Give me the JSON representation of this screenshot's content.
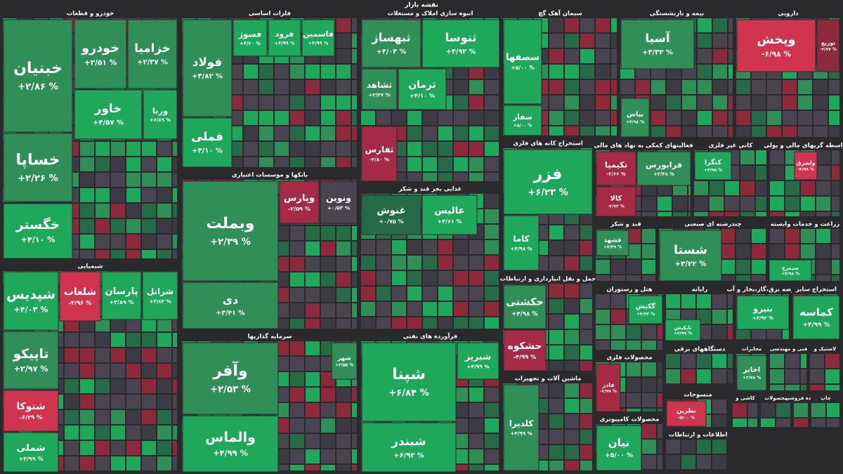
{
  "title": "نقشه بازار",
  "sectors": [
    {
      "name": "خودرو و قطعات",
      "tiles": [
        {
          "name": "خبنیان",
          "change": "+۲/۸۶ %",
          "color": "#2f8f57"
        },
        {
          "name": "خودرو",
          "change": "+۲/۵۱ %",
          "color": "#2f8f57"
        },
        {
          "name": "خزامیا",
          "change": "+۲/۳۷ %",
          "color": "#2f8f57"
        },
        {
          "name": "خساپا",
          "change": "+۲/۲۶ %",
          "color": "#2f8f57"
        },
        {
          "name": "خاور",
          "change": "+۴/۵۷ %",
          "color": "#1fa85c"
        },
        {
          "name": "ورنا",
          "change": "+۶/۸۹ %",
          "color": "#1fa85c"
        },
        {
          "name": "خگستر",
          "change": "+۴/۱۰ %",
          "color": "#1fa85c"
        }
      ]
    },
    {
      "name": "شیمیایی",
      "tiles": [
        {
          "name": "شپدیس",
          "change": "+۴/۰۳ %",
          "color": "#1fa85c"
        },
        {
          "name": "شلعاب",
          "change": "-۴/۹۶ %",
          "color": "#d0344f"
        },
        {
          "name": "پارسان",
          "change": "+۳/۸۹ %",
          "color": "#1fa85c"
        },
        {
          "name": "شرانل",
          "change": "+۳/۸۴ %",
          "color": "#1fa85c"
        },
        {
          "name": "تاپیکو",
          "change": "+۲/۹۷ %",
          "color": "#2f8f57"
        },
        {
          "name": "شتوکا",
          "change": "-۶/۲۹ %",
          "color": "#d0344f"
        },
        {
          "name": "شملی",
          "change": "+۴/۹۹ %",
          "color": "#1fa85c"
        }
      ]
    },
    {
      "name": "فلزات اساسی",
      "tiles": [
        {
          "name": "فولاد",
          "change": "+۳/۸۲ %",
          "color": "#2f8f57"
        },
        {
          "name": "فملی",
          "change": "+۴/۱۰ %",
          "color": "#1fa85c"
        },
        {
          "name": "فسوژ",
          "change": "+۴/۲۰ %",
          "color": "#1fa85c"
        },
        {
          "name": "فرود",
          "change": "+۴/۹۹ %",
          "color": "#1fa85c"
        },
        {
          "name": "فاسمین",
          "change": "+۴/۹۹ %",
          "color": "#1fa85c"
        }
      ]
    },
    {
      "name": "بانکها و موسسات اعتباری",
      "tiles": [
        {
          "name": "وبملت",
          "change": "+۲/۳۹ %",
          "color": "#2f8f57"
        },
        {
          "name": "دی",
          "change": "+۳/۴۱ %",
          "color": "#2f8f57"
        },
        {
          "name": "وپارس",
          "change": "-۲/۵۹ %",
          "color": "#a52a45"
        },
        {
          "name": "ونوین",
          "change": "+۰/۵۳ %",
          "color": "#4a4450"
        }
      ]
    },
    {
      "name": "سرمایه گذاریها",
      "tiles": [
        {
          "name": "وآفر",
          "change": "+۲/۵۳ %",
          "color": "#2f8f57"
        },
        {
          "name": "والماس",
          "change": "+۴/۹۹ %",
          "color": "#1fa85c"
        },
        {
          "name": "شهر",
          "change": "+۲/۵۵ %",
          "color": "#2f8f57"
        }
      ]
    },
    {
      "name": "انبوه سازی املاک و مستغلات",
      "tiles": [
        {
          "name": "ثبهساز",
          "change": "+۴/۰۳ %",
          "color": "#2f8f57"
        },
        {
          "name": "ثنوسا",
          "change": "+۴/۹۲ %",
          "color": "#1fa85c"
        },
        {
          "name": "ثشاهد",
          "change": "+۳/۲۷ %",
          "color": "#2f8f57"
        },
        {
          "name": "ثرمان",
          "change": "+۴/۱۰ %",
          "color": "#1fa85c"
        },
        {
          "name": "ثفارس",
          "change": "-۲/۸۰ %",
          "color": "#a52a45"
        }
      ]
    },
    {
      "name": "غذایی بجز قند و شکر",
      "tiles": [
        {
          "name": "غنوش",
          "change": "+۰/۷۵ %",
          "color": "#276a47"
        },
        {
          "name": "عالیس",
          "change": "+۴/۶۱ %",
          "color": "#1fa85c"
        }
      ]
    },
    {
      "name": "فرآورده های نفتی",
      "tiles": [
        {
          "name": "شپنا",
          "change": "+۶/۸۴ %",
          "color": "#1fa85c"
        },
        {
          "name": "شبندر",
          "change": "+۶/۹۲ %",
          "color": "#1fa85c"
        },
        {
          "name": "شبریز",
          "change": "+۴/۹۹ %",
          "color": "#1fa85c"
        }
      ]
    },
    {
      "name": "سیمان آهک گچ",
      "tiles": [
        {
          "name": "سصفها",
          "change": "+۵/۰۰ %",
          "color": "#1fa85c"
        },
        {
          "name": "سفار",
          "change": "+۵/۰۰ %",
          "color": "#1fa85c"
        }
      ]
    },
    {
      "name": "استخراج کانه های فلزی",
      "tiles": [
        {
          "name": "فزر",
          "change": "+۶/۲۳ %",
          "color": "#1fa85c"
        },
        {
          "name": "کاما",
          "change": "+۴/۹۸ %",
          "color": "#1fa85c"
        }
      ]
    },
    {
      "name": "حمل و نقل انبارداری و ارتباطات",
      "tiles": [
        {
          "name": "حکشتی",
          "change": "+۴/۹۸ %",
          "color": "#2f8f57"
        },
        {
          "name": "حشکوه",
          "change": "-۴/۹۹ %",
          "color": "#a52a45"
        }
      ]
    },
    {
      "name": "ماشین آلات و تجهیزات",
      "tiles": [
        {
          "name": "کلدیرا",
          "change": "+۴/۹۹ %",
          "color": "#2f8f57"
        }
      ]
    },
    {
      "name": "بیمه و بازنشستگی",
      "tiles": [
        {
          "name": "آسیا",
          "change": "+۳/۳۲ %",
          "color": "#2f8f57"
        },
        {
          "name": "بپاس",
          "change": "+۴/۹۸ %",
          "color": "#2f8f57"
        }
      ]
    },
    {
      "name": "دارویی",
      "tiles": [
        {
          "name": "وپخش",
          "change": "-۶/۹۸ %",
          "color": "#d0344f"
        },
        {
          "name": "توزیع",
          "change": "-۲/۷۷ %",
          "color": "#8c2a3c"
        }
      ]
    },
    {
      "name": "فعالیتهای کمکی به نهاد های مالی",
      "tiles": [
        {
          "name": "تکیمیا",
          "change": "-۲/۶۶ %",
          "color": "#a52a45"
        },
        {
          "name": "فرابورس",
          "change": "+۳/۴۸ %",
          "color": "#2f8f57"
        },
        {
          "name": "کالا",
          "change": "-۲/۷۳ %",
          "color": "#a52a45"
        }
      ]
    },
    {
      "name": "کانی غیر فلزی",
      "tiles": [
        {
          "name": "کنگرا",
          "change": "+۴/۹۵ %",
          "color": "#1fa85c"
        }
      ]
    },
    {
      "name": "واسطه گریهای مالی و پولی",
      "tiles": [
        {
          "name": "ولشرق",
          "change": "-۴/۹۹ %",
          "color": "#d0344f"
        }
      ]
    },
    {
      "name": "قند و شکر",
      "tiles": [
        {
          "name": "قشهد",
          "change": "+۴/۴۹ %",
          "color": "#2f8f57"
        }
      ]
    },
    {
      "name": "چندرشته ای صنعتی",
      "tiles": [
        {
          "name": "شستا",
          "change": "+۳/۲۲ %",
          "color": "#2f8f57"
        }
      ]
    },
    {
      "name": "زراعت و خدمات وابسته",
      "tiles": [
        {
          "name": "سیمرغ",
          "change": "+۴/۹۸ %",
          "color": "#1fa85c"
        }
      ]
    },
    {
      "name": "هتل و رستوران",
      "tiles": [
        {
          "name": "گکیش",
          "change": "+۴/۷۳ %",
          "color": "#1fa85c"
        }
      ]
    },
    {
      "name": "رایانه",
      "tiles": [
        {
          "name": "تاپکیش",
          "change": "+۴/۹۹ %",
          "color": "#1fa85c"
        }
      ]
    },
    {
      "name": "عرضه برق،گاز،بخار و آب",
      "tiles": [
        {
          "name": "بنیرو",
          "change": "+۴/۹۲ %",
          "color": "#1fa85c"
        }
      ]
    },
    {
      "name": "استخراج سایر",
      "tiles": [
        {
          "name": "کماسه",
          "change": "+۴/۹۹ %",
          "color": "#1fa85c"
        }
      ]
    },
    {
      "name": "محصولات فلزی",
      "tiles": [
        {
          "name": "فاذر",
          "change": "-۲/۹۹ %",
          "color": "#a52a45"
        }
      ]
    },
    {
      "name": "دستگاههای برقی",
      "tiles": []
    },
    {
      "name": "مخابرات",
      "tiles": [
        {
          "name": "اخابر",
          "change": "+۲/۷۸ %",
          "color": "#2f8f57"
        }
      ]
    },
    {
      "name": "فنی و مهندسی",
      "tiles": []
    },
    {
      "name": "لاستیک و",
      "tiles": []
    },
    {
      "name": "محصولات کامپیوتری",
      "tiles": [
        {
          "name": "نیان",
          "change": "+۵/۰۰ %",
          "color": "#1fa85c"
        }
      ]
    },
    {
      "name": "منسوجات",
      "tiles": [
        {
          "name": "نطرین",
          "change": "-۵/۰۰ %",
          "color": "#d0344f"
        }
      ]
    },
    {
      "name": "اطلاعات و ارتباطات",
      "tiles": []
    },
    {
      "name": "کاشی و",
      "tiles": []
    },
    {
      "name": "محصولات",
      "tiles": []
    },
    {
      "name": "خرده فروشی",
      "tiles": []
    },
    {
      "name": "چاپ",
      "tiles": []
    }
  ]
}
